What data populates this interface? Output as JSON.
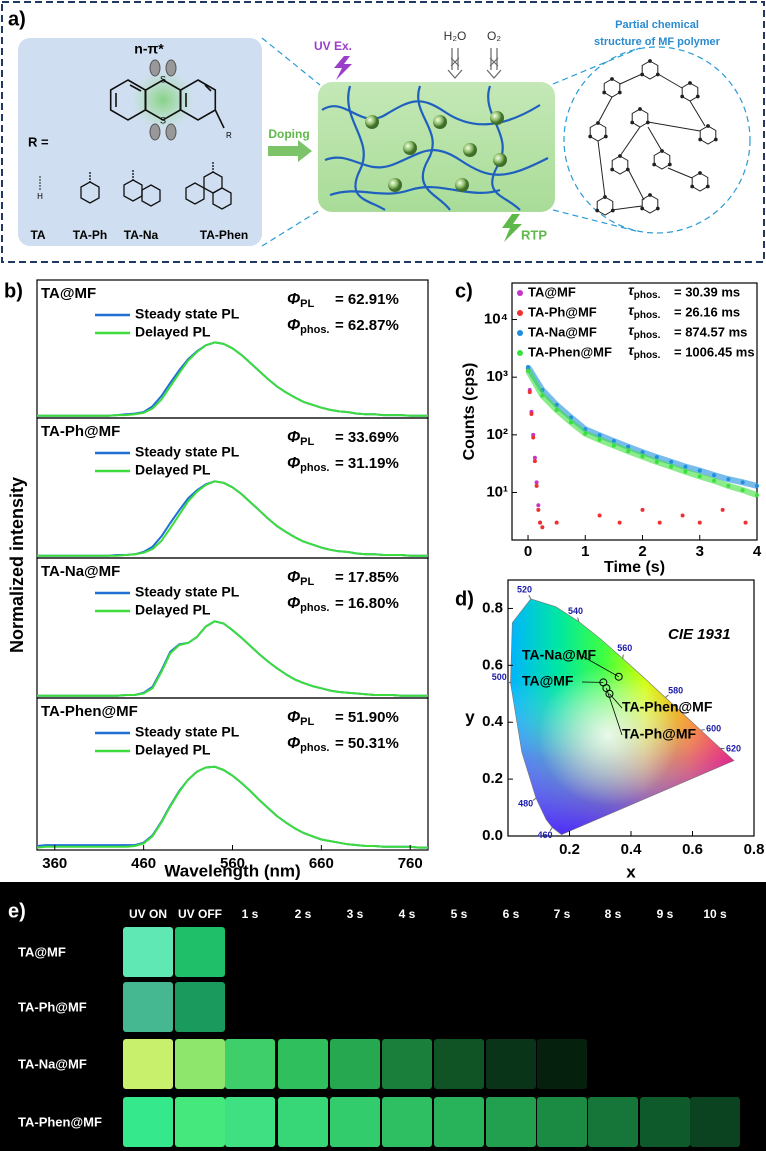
{
  "panel_a": {
    "label": "a)",
    "transition": "n-π*",
    "atoms": [
      "S",
      "S",
      "R",
      "H"
    ],
    "r_label": "R =",
    "substituents": [
      "TA",
      "TA-Ph",
      "TA-Na",
      "TA-Phen"
    ],
    "doping": "Doping",
    "uv": "UV Ex.",
    "water": "H₂O",
    "oxygen": "O₂",
    "rtp": "RTP",
    "polymer_caption": [
      "Partial chemical",
      "structure of MF polymer"
    ]
  },
  "chart_data": [
    {
      "type": "line",
      "panel_label": "b)",
      "title": "TA@MF",
      "ylabel": "Normalized intensity",
      "x": [
        340,
        350,
        360,
        370,
        380,
        390,
        400,
        410,
        420,
        430,
        440,
        450,
        460,
        470,
        480,
        490,
        500,
        510,
        520,
        530,
        540,
        550,
        560,
        570,
        580,
        590,
        600,
        610,
        620,
        630,
        640,
        650,
        660,
        670,
        680,
        690,
        700,
        710,
        720,
        730,
        740,
        750,
        760,
        770,
        780
      ],
      "xlim": [
        340,
        780
      ],
      "ylim": [
        -0.03,
        1.85
      ],
      "series": [
        {
          "name": "Steady state PL",
          "color": "#1f6fd6",
          "values": [
            0,
            0,
            0,
            0,
            0,
            0,
            0,
            0,
            0,
            0.01,
            0.02,
            0.03,
            0.05,
            0.13,
            0.27,
            0.45,
            0.62,
            0.77,
            0.88,
            0.96,
            1.0,
            0.98,
            0.92,
            0.83,
            0.72,
            0.61,
            0.5,
            0.4,
            0.32,
            0.25,
            0.19,
            0.15,
            0.11,
            0.08,
            0.06,
            0.05,
            0.03,
            0.02,
            0.02,
            0.01,
            0.01,
            0.01,
            0,
            0,
            0
          ]
        },
        {
          "name": "Delayed PL",
          "color": "#3ddc3d",
          "values": [
            0,
            0,
            0,
            0,
            0,
            0,
            0,
            0,
            0,
            0.01,
            0.01,
            0.02,
            0.04,
            0.1,
            0.22,
            0.4,
            0.58,
            0.75,
            0.87,
            0.96,
            1.0,
            0.98,
            0.92,
            0.83,
            0.72,
            0.61,
            0.5,
            0.4,
            0.32,
            0.25,
            0.19,
            0.15,
            0.11,
            0.08,
            0.06,
            0.05,
            0.03,
            0.02,
            0.02,
            0.01,
            0.01,
            0.01,
            0,
            0,
            0
          ]
        }
      ],
      "annotations": [
        {
          "symbol": "Φ",
          "sub": "PL",
          "text": "= 62.91%"
        },
        {
          "symbol": "Φ",
          "sub": "phos.",
          "text": "= 62.87%"
        }
      ]
    },
    {
      "type": "line",
      "title": "TA-Ph@MF",
      "x": [
        340,
        350,
        360,
        370,
        380,
        390,
        400,
        410,
        420,
        430,
        440,
        450,
        460,
        470,
        480,
        490,
        500,
        510,
        520,
        530,
        540,
        550,
        560,
        570,
        580,
        590,
        600,
        610,
        620,
        630,
        640,
        650,
        660,
        670,
        680,
        690,
        700,
        710,
        720,
        730,
        740,
        750,
        760,
        770,
        780
      ],
      "xlim": [
        340,
        780
      ],
      "ylim": [
        -0.03,
        1.85
      ],
      "series": [
        {
          "name": "Steady state PL",
          "color": "#1f6fd6",
          "values": [
            0,
            0,
            0,
            0,
            0,
            0,
            0,
            0,
            0,
            0.01,
            0.01,
            0.02,
            0.05,
            0.12,
            0.26,
            0.44,
            0.61,
            0.77,
            0.88,
            0.96,
            1.0,
            0.98,
            0.92,
            0.83,
            0.72,
            0.61,
            0.5,
            0.4,
            0.32,
            0.25,
            0.19,
            0.15,
            0.11,
            0.08,
            0.06,
            0.05,
            0.03,
            0.02,
            0.02,
            0.01,
            0.01,
            0.01,
            0,
            0,
            0
          ]
        },
        {
          "name": "Delayed PL",
          "color": "#3ddc3d",
          "values": [
            0,
            0,
            0,
            0,
            0,
            0,
            0,
            0,
            0,
            0,
            0.01,
            0.02,
            0.04,
            0.09,
            0.2,
            0.37,
            0.55,
            0.73,
            0.86,
            0.95,
            1.0,
            0.98,
            0.92,
            0.83,
            0.72,
            0.61,
            0.5,
            0.4,
            0.32,
            0.25,
            0.19,
            0.15,
            0.11,
            0.08,
            0.06,
            0.05,
            0.03,
            0.02,
            0.02,
            0.01,
            0.01,
            0.01,
            0,
            0,
            0
          ]
        }
      ],
      "annotations": [
        {
          "symbol": "Φ",
          "sub": "PL",
          "text": "= 33.69%"
        },
        {
          "symbol": "Φ",
          "sub": "phos.",
          "text": "= 31.19%"
        }
      ]
    },
    {
      "type": "line",
      "title": "TA-Na@MF",
      "x": [
        340,
        350,
        360,
        370,
        380,
        390,
        400,
        410,
        420,
        430,
        440,
        450,
        460,
        470,
        480,
        490,
        500,
        510,
        520,
        530,
        540,
        550,
        560,
        570,
        580,
        590,
        600,
        610,
        620,
        630,
        640,
        650,
        660,
        670,
        680,
        690,
        700,
        710,
        720,
        730,
        740,
        750,
        760,
        770,
        780
      ],
      "xlim": [
        340,
        780
      ],
      "ylim": [
        -0.03,
        1.85
      ],
      "series": [
        {
          "name": "Steady state PL",
          "color": "#1f6fd6",
          "values": [
            0,
            0,
            0,
            0,
            0,
            0,
            0,
            0,
            0,
            0,
            0.01,
            0.01,
            0.04,
            0.12,
            0.34,
            0.59,
            0.69,
            0.71,
            0.79,
            0.93,
            1.0,
            0.97,
            0.88,
            0.78,
            0.67,
            0.56,
            0.46,
            0.37,
            0.29,
            0.22,
            0.17,
            0.13,
            0.1,
            0.07,
            0.05,
            0.04,
            0.03,
            0.02,
            0.01,
            0.01,
            0.01,
            0,
            0,
            0,
            0
          ]
        },
        {
          "name": "Delayed PL",
          "color": "#3ddc3d",
          "values": [
            0,
            0,
            0,
            0,
            0,
            0,
            0,
            0,
            0,
            0,
            0.01,
            0.01,
            0.03,
            0.1,
            0.32,
            0.57,
            0.68,
            0.71,
            0.79,
            0.93,
            1.0,
            0.97,
            0.88,
            0.78,
            0.67,
            0.56,
            0.46,
            0.37,
            0.29,
            0.22,
            0.17,
            0.13,
            0.1,
            0.07,
            0.05,
            0.04,
            0.03,
            0.02,
            0.01,
            0.01,
            0.01,
            0,
            0,
            0,
            0
          ]
        }
      ],
      "annotations": [
        {
          "symbol": "Φ",
          "sub": "PL",
          "text": "= 17.85%"
        },
        {
          "symbol": "Φ",
          "sub": "phos.",
          "text": "= 16.80%"
        }
      ]
    },
    {
      "type": "line",
      "title": "TA-Phen@MF",
      "xlabel": "Wavelength (nm)",
      "x": [
        340,
        350,
        360,
        370,
        380,
        390,
        400,
        410,
        420,
        430,
        440,
        450,
        460,
        470,
        480,
        490,
        500,
        510,
        520,
        530,
        540,
        550,
        560,
        570,
        580,
        590,
        600,
        610,
        620,
        630,
        640,
        650,
        660,
        670,
        680,
        690,
        700,
        710,
        720,
        730,
        740,
        750,
        760,
        770,
        780
      ],
      "xlim": [
        340,
        780
      ],
      "xticks": [
        360,
        460,
        560,
        660,
        760
      ],
      "ylim": [
        -0.03,
        1.85
      ],
      "series": [
        {
          "name": "Steady state PL",
          "color": "#1f6fd6",
          "values": [
            0.02,
            0.03,
            0.03,
            0.03,
            0.03,
            0.03,
            0.03,
            0.03,
            0.03,
            0.03,
            0.03,
            0.03,
            0.06,
            0.15,
            0.32,
            0.52,
            0.7,
            0.84,
            0.94,
            0.99,
            1.0,
            0.96,
            0.89,
            0.8,
            0.7,
            0.59,
            0.49,
            0.39,
            0.31,
            0.24,
            0.18,
            0.14,
            0.1,
            0.08,
            0.06,
            0.04,
            0.03,
            0.02,
            0.02,
            0.01,
            0.01,
            0.01,
            0.01,
            0,
            0
          ]
        },
        {
          "name": "Delayed PL",
          "color": "#3ddc3d",
          "values": [
            0,
            0.01,
            0.01,
            0.01,
            0.01,
            0.01,
            0.01,
            0.01,
            0.01,
            0.01,
            0.01,
            0.02,
            0.05,
            0.14,
            0.31,
            0.51,
            0.69,
            0.84,
            0.94,
            0.99,
            1.0,
            0.96,
            0.89,
            0.8,
            0.7,
            0.59,
            0.49,
            0.39,
            0.31,
            0.24,
            0.18,
            0.14,
            0.1,
            0.08,
            0.06,
            0.04,
            0.03,
            0.02,
            0.02,
            0.01,
            0.01,
            0.01,
            0.01,
            0,
            0
          ]
        }
      ],
      "annotations": [
        {
          "symbol": "Φ",
          "sub": "PL",
          "text": "= 51.90%"
        },
        {
          "symbol": "Φ",
          "sub": "phos.",
          "text": "= 50.31%"
        }
      ]
    },
    {
      "type": "scatter",
      "panel_label": "c)",
      "log_y": true,
      "xlabel": "Time (s)",
      "ylabel": "Counts (cps)",
      "xlim": [
        -0.28,
        4
      ],
      "xticks": [
        0,
        1,
        2,
        3,
        4
      ],
      "ylim": [
        1.5,
        43000
      ],
      "yticks": [
        {
          "value": 10,
          "label": "10¹"
        },
        {
          "value": 100,
          "label": "10²"
        },
        {
          "value": 1000,
          "label": "10³"
        },
        {
          "value": 10000,
          "label": "10⁴"
        }
      ],
      "series": [
        {
          "name": "TA@MF",
          "color": "#c833c8",
          "tau": {
            "symbol": "τ",
            "sub": "phos.",
            "text": "= 30.39 ms"
          },
          "x": [
            0,
            0.03,
            0.06,
            0.09,
            0.12,
            0.15,
            0.18,
            0.21
          ],
          "values": [
            1400,
            600,
            250,
            100,
            40,
            15,
            6,
            3
          ]
        },
        {
          "name": "TA-Ph@MF",
          "color": "#f03030",
          "tau": {
            "symbol": "τ",
            "sub": "phos.",
            "text": "= 26.16 ms"
          },
          "x": [
            0,
            0.03,
            0.06,
            0.09,
            0.12,
            0.15,
            0.18,
            0.21,
            0.25,
            0.5,
            1.25,
            1.6,
            2.0,
            2.3,
            2.7,
            3.0,
            3.4,
            3.8
          ],
          "values": [
            1300,
            550,
            230,
            90,
            35,
            13,
            5,
            3,
            2.5,
            3,
            4,
            3,
            5,
            3,
            4,
            3,
            5,
            3
          ]
        },
        {
          "name": "TA-Na@MF",
          "color": "#1e8fe0",
          "tau": {
            "symbol": "τ",
            "sub": "phos.",
            "text": "= 874.57 ms"
          },
          "x": [
            0,
            0.25,
            0.5,
            0.75,
            1,
            1.25,
            1.5,
            1.75,
            2,
            2.25,
            2.5,
            2.75,
            3,
            3.25,
            3.5,
            3.75,
            4
          ],
          "values": [
            1500,
            600,
            330,
            200,
            125,
            98,
            78,
            62,
            50,
            41,
            34,
            28,
            24,
            20,
            17,
            15,
            13
          ]
        },
        {
          "name": "TA-Phen@MF",
          "color": "#3ce03c",
          "tau": {
            "symbol": "τ",
            "sub": "phos.",
            "text": "= 1006.45 ms"
          },
          "x": [
            0,
            0.25,
            0.5,
            0.75,
            1,
            1.25,
            1.5,
            1.75,
            2,
            2.25,
            2.5,
            2.75,
            3,
            3.25,
            3.5,
            3.75,
            4
          ],
          "values": [
            1300,
            480,
            270,
            165,
            105,
            82,
            65,
            52,
            42,
            34,
            28,
            23,
            19,
            16,
            13,
            11,
            9
          ]
        }
      ]
    },
    {
      "type": "cie",
      "panel_label": "d)",
      "xlabel": "x",
      "ylabel": "y",
      "annotation": "CIE 1931",
      "xlim": [
        0,
        0.8
      ],
      "xticks": [
        0.2,
        0.4,
        0.6,
        0.8
      ],
      "ylim": [
        0,
        0.9
      ],
      "yticks": [
        {
          "value": 0,
          "label": "0.0"
        },
        0.2,
        0.4,
        0.6,
        0.8
      ],
      "spectral_locus": {
        "x": [
          0.174,
          0.144,
          0.124,
          0.091,
          0.045,
          0.008,
          0.014,
          0.074,
          0.155,
          0.23,
          0.302,
          0.373,
          0.444,
          0.512,
          0.575,
          0.627,
          0.691,
          0.735
        ],
        "y": [
          0.005,
          0.03,
          0.058,
          0.133,
          0.295,
          0.538,
          0.75,
          0.834,
          0.806,
          0.754,
          0.692,
          0.624,
          0.555,
          0.487,
          0.424,
          0.372,
          0.308,
          0.265
        ]
      },
      "wavelength_labels": [
        {
          "label": "460",
          "x": 0.144,
          "y": 0.03
        },
        {
          "label": "480",
          "x": 0.091,
          "y": 0.133
        },
        {
          "label": "500",
          "x": 0.008,
          "y": 0.538
        },
        {
          "label": "520",
          "x": 0.074,
          "y": 0.834
        },
        {
          "label": "540",
          "x": 0.23,
          "y": 0.754
        },
        {
          "label": "560",
          "x": 0.373,
          "y": 0.624
        },
        {
          "label": "580",
          "x": 0.512,
          "y": 0.487
        },
        {
          "label": "600",
          "x": 0.627,
          "y": 0.372
        },
        {
          "label": "620",
          "x": 0.691,
          "y": 0.308
        }
      ],
      "series": [
        {
          "name": "TA@MF",
          "x": [
            0.31
          ],
          "values": [
            0.54
          ]
        },
        {
          "name": "TA-Ph@MF",
          "x": [
            0.32
          ],
          "values": [
            0.52
          ]
        },
        {
          "name": "TA-Na@MF",
          "x": [
            0.36
          ],
          "values": [
            0.56
          ]
        },
        {
          "name": "TA-Phen@MF",
          "x": [
            0.33
          ],
          "values": [
            0.5
          ]
        }
      ]
    }
  ],
  "panel_e": {
    "label": "e)",
    "columns": [
      "UV ON",
      "UV OFF",
      "1 s",
      "2 s",
      "3 s",
      "4 s",
      "5 s",
      "6 s",
      "7 s",
      "8 s",
      "9 s",
      "10 s"
    ],
    "rows": [
      {
        "label": "TA@MF",
        "cells": [
          "#5fe8b4",
          "#1fbf6a",
          null,
          null,
          null,
          null,
          null,
          null,
          null,
          null,
          null,
          null
        ]
      },
      {
        "label": "TA-Ph@MF",
        "cells": [
          "#45b891",
          "#1a9a5d",
          null,
          null,
          null,
          null,
          null,
          null,
          null,
          null,
          null,
          null
        ]
      },
      {
        "label": "TA-Na@MF",
        "cells": [
          "#c8f06c",
          "#8fe66c",
          "#3fcf6a",
          "#2fbf5d",
          "#25a84f",
          "#1a7f3a",
          "#105426",
          "#0a3418",
          "#06200e",
          null,
          null,
          null
        ]
      },
      {
        "label": "TA-Phen@MF",
        "cells": [
          "#36e88c",
          "#44e87c",
          "#3fe081",
          "#37d676",
          "#33cc6d",
          "#2ebf63",
          "#28b35a",
          "#22a04f",
          "#1b8a43",
          "#167538",
          "#0f5a2a",
          "#0b4220"
        ]
      }
    ]
  }
}
